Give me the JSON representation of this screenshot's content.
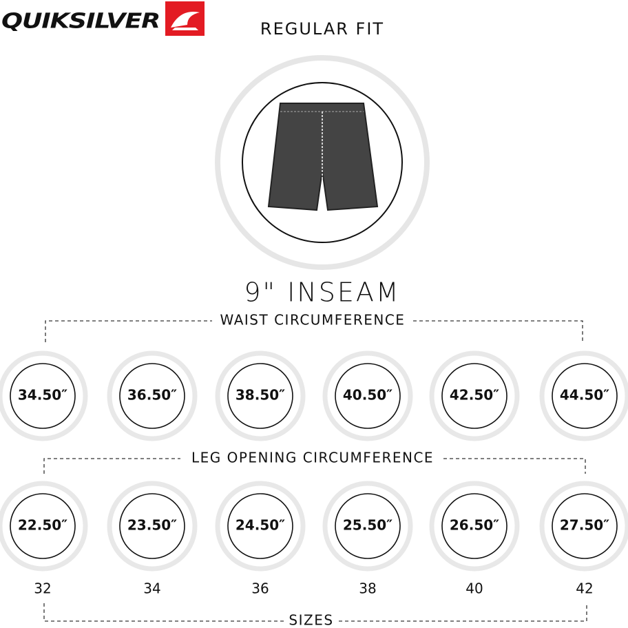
{
  "brand": "QUIKSILVER",
  "title": "REGULAR FIT",
  "inseam": "9\" INSEAM",
  "waist": {
    "label": "WAIST CIRCUMFERENCE",
    "values": [
      "34.50″",
      "36.50″",
      "38.50″",
      "40.50″",
      "42.50″",
      "44.50″"
    ]
  },
  "leg_opening": {
    "label": "LEG OPENING CIRCUMFERENCE",
    "values": [
      "22.50″",
      "23.50″",
      "24.50″",
      "25.50″",
      "26.50″",
      "27.50″"
    ]
  },
  "sizes": {
    "label": "SIZES",
    "values": [
      "32",
      "34",
      "36",
      "38",
      "40",
      "42"
    ]
  }
}
